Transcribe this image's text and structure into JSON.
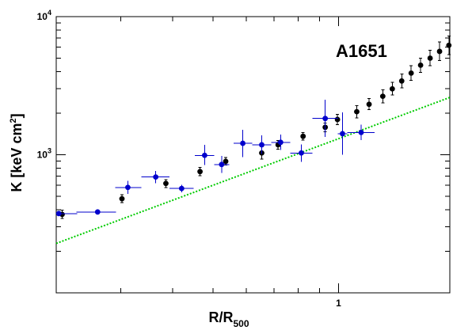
{
  "chart_data": {
    "type": "scatter",
    "title": "A1651",
    "xlabel": "R/R",
    "xlabel_sub": "500",
    "ylabel_main": "K [keV cm",
    "ylabel_sup": "2",
    "ylabel_close": "]",
    "xscale": "log",
    "yscale": "log",
    "xlim": [
      0.21,
      1.85
    ],
    "ylim": [
      100,
      10000
    ],
    "grid": false,
    "x_tick_labels": [
      {
        "value": 1,
        "label": "1"
      }
    ],
    "y_tick_labels": [
      {
        "value": 1000,
        "base": "10",
        "exp": "3"
      },
      {
        "value": 10000,
        "base": "10",
        "exp": "4"
      }
    ],
    "series": [
      {
        "color": "#000000",
        "points": [
          {
            "x": 0.217,
            "y": 370,
            "ylo": 345,
            "yhi": 398,
            "xlo": 0.215,
            "xhi": 0.219
          },
          {
            "x": 0.302,
            "y": 480,
            "ylo": 450,
            "yhi": 515,
            "xlo": 0.3,
            "xhi": 0.304
          },
          {
            "x": 0.385,
            "y": 620,
            "ylo": 580,
            "yhi": 660,
            "xlo": 0.383,
            "xhi": 0.387
          },
          {
            "x": 0.465,
            "y": 755,
            "ylo": 705,
            "yhi": 810,
            "xlo": 0.463,
            "xhi": 0.467
          },
          {
            "x": 0.536,
            "y": 895,
            "ylo": 840,
            "yhi": 955,
            "xlo": 0.534,
            "xhi": 0.538
          },
          {
            "x": 0.654,
            "y": 1030,
            "ylo": 930,
            "yhi": 1140,
            "xlo": 0.652,
            "xhi": 0.656
          },
          {
            "x": 0.716,
            "y": 1180,
            "ylo": 1100,
            "yhi": 1270,
            "xlo": 0.714,
            "xhi": 0.718
          },
          {
            "x": 0.822,
            "y": 1360,
            "ylo": 1280,
            "yhi": 1450,
            "xlo": 0.82,
            "xhi": 0.824
          },
          {
            "x": 0.929,
            "y": 1580,
            "ylo": 1470,
            "yhi": 1700,
            "xlo": 0.927,
            "xhi": 0.931
          },
          {
            "x": 0.994,
            "y": 1800,
            "ylo": 1650,
            "yhi": 1960,
            "xlo": 0.992,
            "xhi": 0.996
          },
          {
            "x": 1.106,
            "y": 2050,
            "ylo": 1850,
            "yhi": 2270,
            "xlo": 1.104,
            "xhi": 1.108
          },
          {
            "x": 1.184,
            "y": 2320,
            "ylo": 2120,
            "yhi": 2550,
            "xlo": 1.182,
            "xhi": 1.186
          },
          {
            "x": 1.277,
            "y": 2650,
            "ylo": 2380,
            "yhi": 2960,
            "xlo": 1.275,
            "xhi": 1.279
          },
          {
            "x": 1.346,
            "y": 3000,
            "ylo": 2700,
            "yhi": 3350,
            "xlo": 1.344,
            "xhi": 1.348
          },
          {
            "x": 1.418,
            "y": 3420,
            "ylo": 3050,
            "yhi": 3850,
            "xlo": 1.416,
            "xhi": 1.42
          },
          {
            "x": 1.494,
            "y": 3900,
            "ylo": 3450,
            "yhi": 4400,
            "xlo": 1.492,
            "xhi": 1.496
          },
          {
            "x": 1.574,
            "y": 4450,
            "ylo": 3950,
            "yhi": 5000,
            "xlo": 1.572,
            "xhi": 1.576
          },
          {
            "x": 1.659,
            "y": 5000,
            "ylo": 4400,
            "yhi": 5700,
            "xlo": 1.657,
            "xhi": 1.661
          },
          {
            "x": 1.748,
            "y": 5600,
            "ylo": 4800,
            "yhi": 6550,
            "xlo": 1.746,
            "xhi": 1.75
          },
          {
            "x": 1.84,
            "y": 6200,
            "ylo": 5300,
            "yhi": 7250,
            "xlo": 1.838,
            "xhi": 1.842
          }
        ]
      },
      {
        "color": "#0000cc",
        "points": [
          {
            "x": 0.213,
            "y": 375,
            "ylo": 370,
            "yhi": 380,
            "xlo": 0.21,
            "xhi": 0.236
          },
          {
            "x": 0.264,
            "y": 385,
            "ylo": 375,
            "yhi": 395,
            "xlo": 0.235,
            "xhi": 0.292
          },
          {
            "x": 0.312,
            "y": 580,
            "ylo": 520,
            "yhi": 645,
            "xlo": 0.291,
            "xhi": 0.336
          },
          {
            "x": 0.364,
            "y": 690,
            "ylo": 620,
            "yhi": 765,
            "xlo": 0.336,
            "xhi": 0.393
          },
          {
            "x": 0.42,
            "y": 570,
            "ylo": 535,
            "yhi": 605,
            "xlo": 0.393,
            "xhi": 0.449
          },
          {
            "x": 0.477,
            "y": 990,
            "ylo": 840,
            "yhi": 1180,
            "xlo": 0.452,
            "xhi": 0.503
          },
          {
            "x": 0.524,
            "y": 850,
            "ylo": 740,
            "yhi": 980,
            "xlo": 0.503,
            "xhi": 0.546
          },
          {
            "x": 0.589,
            "y": 1210,
            "ylo": 960,
            "yhi": 1520,
            "xlo": 0.56,
            "xhi": 0.62
          },
          {
            "x": 0.654,
            "y": 1180,
            "ylo": 1010,
            "yhi": 1380,
            "xlo": 0.62,
            "xhi": 0.69
          },
          {
            "x": 0.726,
            "y": 1230,
            "ylo": 1080,
            "yhi": 1400,
            "xlo": 0.69,
            "xhi": 0.765
          },
          {
            "x": 0.814,
            "y": 1030,
            "ylo": 890,
            "yhi": 1190,
            "xlo": 0.765,
            "xhi": 0.866
          },
          {
            "x": 0.929,
            "y": 1830,
            "ylo": 1350,
            "yhi": 2500,
            "xlo": 0.866,
            "xhi": 0.997
          },
          {
            "x": 1.022,
            "y": 1420,
            "ylo": 1000,
            "yhi": 2030,
            "xlo": 0.995,
            "xhi": 1.05
          },
          {
            "x": 1.133,
            "y": 1450,
            "ylo": 1280,
            "yhi": 1650,
            "xlo": 1.05,
            "xhi": 1.22
          }
        ]
      }
    ],
    "model_line": {
      "color": "#00cc00",
      "x": [
        0.21,
        1.85
      ],
      "y": [
        228,
        2600
      ]
    }
  }
}
